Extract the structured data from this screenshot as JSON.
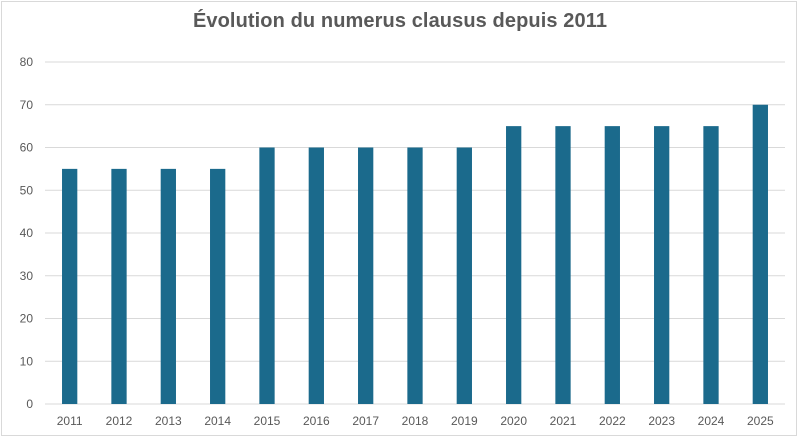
{
  "chart_data": {
    "type": "bar",
    "title": "Évolution du numerus clausus depuis 2011",
    "xlabel": "",
    "ylabel": "",
    "categories": [
      "2011",
      "2012",
      "2013",
      "2014",
      "2015",
      "2016",
      "2017",
      "2018",
      "2019",
      "2020",
      "2021",
      "2022",
      "2023",
      "2024",
      "2025"
    ],
    "series": [
      {
        "values": [
          55,
          55,
          55,
          55,
          60,
          60,
          60,
          60,
          60,
          65,
          65,
          65,
          65,
          65,
          70
        ]
      }
    ],
    "ylim": [
      0,
      80
    ],
    "yticks": [
      0,
      10,
      20,
      30,
      40,
      50,
      60,
      70,
      80
    ],
    "grid": true,
    "legend": "none",
    "bar_color": "#1b6a8c",
    "grid_color": "#d9d9d9"
  }
}
